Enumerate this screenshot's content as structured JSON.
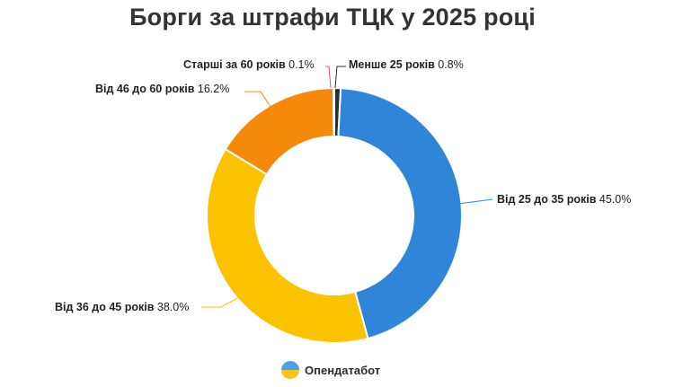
{
  "chart_data": {
    "type": "donut",
    "title": "Борги за штрафи ТЦК у 2025 році",
    "unit": "%",
    "slices": [
      {
        "label": "Менше 25 років",
        "value": 0.8,
        "value_text": "0.8%",
        "color": "#2b2f36"
      },
      {
        "label": "Від 25 до 35 років",
        "value": 45.0,
        "value_text": "45.0%",
        "color": "#2f86d9"
      },
      {
        "label": "Від 36 до 45 років",
        "value": 38.0,
        "value_text": "38.0%",
        "color": "#fbc200"
      },
      {
        "label": "Від 46 до 60 років",
        "value": 16.2,
        "value_text": "16.2%",
        "color": "#f5890a"
      },
      {
        "label": "Старші за 60 років",
        "value": 0.1,
        "value_text": "0.1%",
        "color": "#e8536b"
      }
    ],
    "legend": "none"
  },
  "brand": {
    "name": "Опендатабот",
    "icon": "opendatabot-logo-icon"
  }
}
